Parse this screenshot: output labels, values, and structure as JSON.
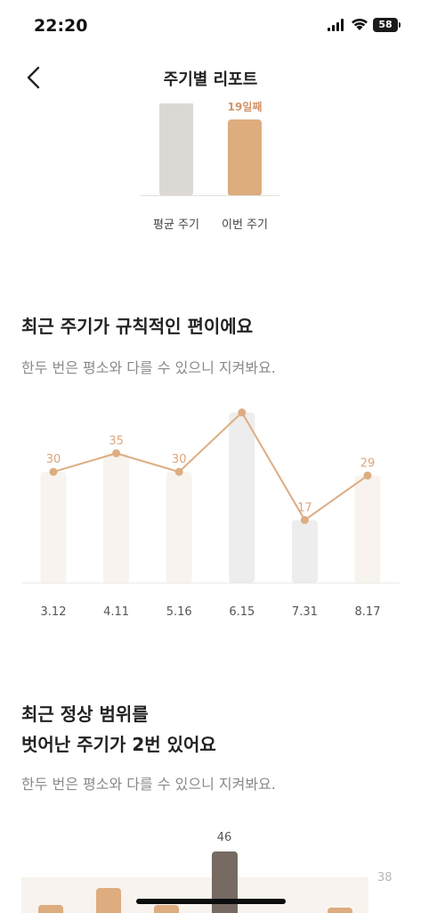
{
  "status_bar": {
    "time": "22:20",
    "battery": "58"
  },
  "header": {
    "title": "주기별 리포트"
  },
  "comparison": {
    "this_cycle_label": "19일째",
    "avg_caption": "평균 주기",
    "this_caption": "이번 주기"
  },
  "section_regular": {
    "title": "최근 주기가 규칙적인 편이에요",
    "subtitle": "한두 번은 평소와 다를 수 있으니 지켜봐요."
  },
  "chart_data": {
    "type": "line",
    "categories": [
      "3.12",
      "4.11",
      "5.16",
      "6.15",
      "7.31",
      "8.17"
    ],
    "values": [
      30,
      35,
      30,
      46,
      17,
      29
    ],
    "highlighted": [
      false,
      false,
      false,
      true,
      true,
      false
    ],
    "ylim": [
      0,
      50
    ],
    "colors": {
      "line": "#ddad82",
      "normal_bar": "#f8f3ee",
      "outlier_bar": "#ededed",
      "label": "#dda57c",
      "axis_label": "#555555"
    }
  },
  "section_outlier": {
    "title_line1": "최근 정상 범위를",
    "title_line2": "벗어난 주기가 2번 있어요",
    "subtitle": "한두 번은 평소와 다를 수 있으니 지켜봐요."
  },
  "bottom_chart": {
    "peak_label": "46",
    "side_value": "38"
  }
}
